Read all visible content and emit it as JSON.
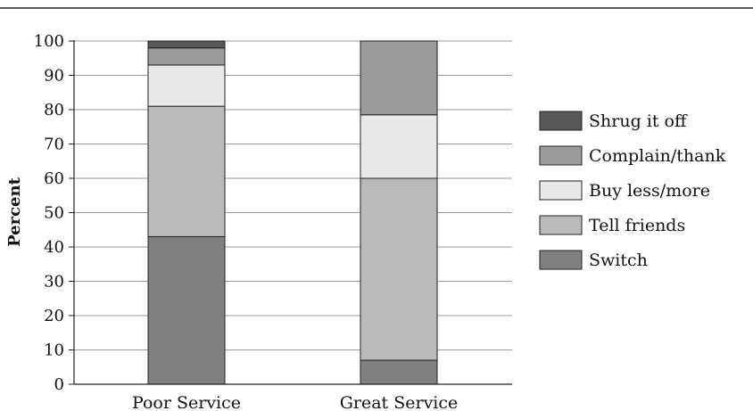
{
  "chart_data": {
    "type": "bar",
    "stacked": true,
    "categories": [
      "Poor Service",
      "Great Service"
    ],
    "ylabel": "Percent",
    "xlabel": "",
    "ylim": [
      0,
      100
    ],
    "yticks": [
      0,
      10,
      20,
      30,
      40,
      50,
      60,
      70,
      80,
      90,
      100
    ],
    "grid": true,
    "legend_position": "right",
    "series": [
      {
        "name": "Switch",
        "values": [
          43,
          7
        ],
        "color": "#808083"
      },
      {
        "name": "Tell friends",
        "values": [
          38,
          53
        ],
        "color": "#bababd"
      },
      {
        "name": "Buy less/more",
        "values": [
          12,
          18.5
        ],
        "color": "#e8e8ea"
      },
      {
        "name": "Complain/thank",
        "values": [
          5,
          21.5
        ],
        "color": "#9a9a9d"
      },
      {
        "name": "Shrug it off",
        "values": [
          2,
          0
        ],
        "color": "#58585b"
      }
    ],
    "legend_order": [
      "Shrug it off",
      "Complain/thank",
      "Buy less/more",
      "Tell friends",
      "Switch"
    ]
  }
}
